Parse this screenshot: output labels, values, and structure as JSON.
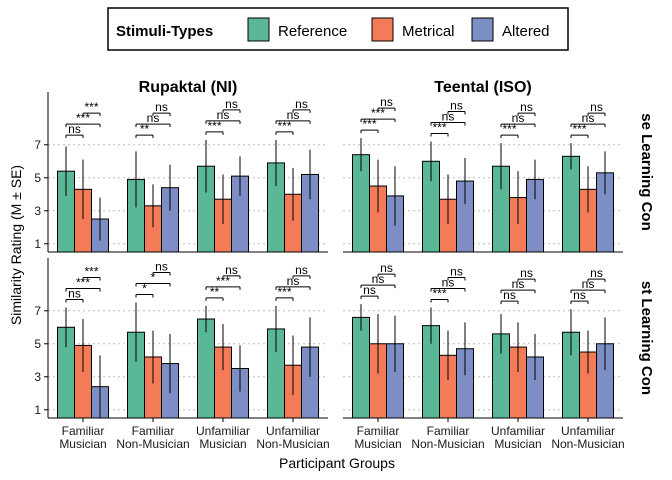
{
  "chart_data": {
    "type": "bar",
    "ylabel": "Similarity Rating (M ± SE)",
    "xlabel": "Participant Groups",
    "yticks": [
      1,
      3,
      5,
      7
    ],
    "ylim": [
      0.5,
      10.2
    ],
    "grid": "horizontal dotted at 1,3,5,7",
    "legend": {
      "title": "Stimuli-Types",
      "position": "top",
      "items": [
        {
          "name": "Reference",
          "color": "#5ab897"
        },
        {
          "name": "Metrical",
          "color": "#f47b57"
        },
        {
          "name": "Altered",
          "color": "#7c8ec4"
        }
      ]
    },
    "categories": [
      "Familiar\nMusician",
      "Familiar\nNon-Musician",
      "Unfamiliar\nMusician",
      "Unfamiliar\nNon-Musician"
    ],
    "columns": [
      "Rupaktal (NI)",
      "Teental (ISO)"
    ],
    "rows": [
      "se Learning Con",
      "st Learning Con"
    ],
    "panels": [
      {
        "row": 0,
        "col": 0,
        "groups": [
          {
            "means": [
              5.4,
              4.3,
              2.5
            ],
            "se": [
              1.5,
              1.8,
              1.3
            ],
            "sig": [
              "ns",
              "***",
              "***"
            ]
          },
          {
            "means": [
              4.9,
              3.3,
              4.4
            ],
            "se": [
              1.7,
              1.3,
              1.4
            ],
            "sig": [
              "**",
              "ns",
              "ns"
            ]
          },
          {
            "means": [
              5.7,
              3.7,
              5.1
            ],
            "se": [
              1.6,
              1.5,
              1.2
            ],
            "sig": [
              "***",
              "ns",
              "ns"
            ]
          },
          {
            "means": [
              5.9,
              4.0,
              5.2
            ],
            "se": [
              1.4,
              1.6,
              1.5
            ],
            "sig": [
              "***",
              "ns",
              "ns"
            ]
          }
        ]
      },
      {
        "row": 0,
        "col": 1,
        "groups": [
          {
            "means": [
              6.4,
              4.5,
              3.9
            ],
            "se": [
              1.0,
              1.6,
              1.8
            ],
            "sig": [
              "***",
              "***",
              "ns"
            ]
          },
          {
            "means": [
              6.0,
              3.7,
              4.8
            ],
            "se": [
              1.2,
              1.5,
              1.4
            ],
            "sig": [
              "***",
              "ns",
              "ns"
            ]
          },
          {
            "means": [
              5.7,
              3.8,
              4.9
            ],
            "se": [
              1.4,
              1.6,
              1.2
            ],
            "sig": [
              "***",
              "ns",
              "ns"
            ]
          },
          {
            "means": [
              6.3,
              4.3,
              5.3
            ],
            "se": [
              0.8,
              1.4,
              1.3
            ],
            "sig": [
              "***",
              "ns",
              "ns"
            ]
          }
        ]
      },
      {
        "row": 1,
        "col": 0,
        "groups": [
          {
            "means": [
              6.0,
              4.9,
              2.4
            ],
            "se": [
              1.2,
              1.6,
              1.9
            ],
            "sig": [
              "ns",
              "***",
              "***"
            ]
          },
          {
            "means": [
              5.7,
              4.2,
              3.8
            ],
            "se": [
              1.8,
              1.6,
              1.8
            ],
            "sig": [
              "*",
              "*",
              "ns"
            ]
          },
          {
            "means": [
              6.5,
              4.8,
              3.5
            ],
            "se": [
              0.8,
              1.4,
              1.4
            ],
            "sig": [
              "**",
              "***",
              "ns"
            ]
          },
          {
            "means": [
              5.9,
              3.7,
              4.8
            ],
            "se": [
              1.4,
              1.8,
              1.8
            ],
            "sig": [
              "***",
              "ns",
              "ns"
            ]
          }
        ]
      },
      {
        "row": 1,
        "col": 1,
        "groups": [
          {
            "means": [
              6.6,
              5.0,
              5.0
            ],
            "se": [
              0.8,
              1.8,
              1.7
            ],
            "sig": [
              "ns",
              "ns",
              "ns"
            ]
          },
          {
            "means": [
              6.1,
              4.3,
              4.7
            ],
            "se": [
              1.1,
              1.5,
              1.6
            ],
            "sig": [
              "***",
              "ns",
              "ns"
            ]
          },
          {
            "means": [
              5.6,
              4.8,
              4.2
            ],
            "se": [
              1.2,
              1.5,
              1.4
            ],
            "sig": [
              "ns",
              "ns",
              "ns"
            ]
          },
          {
            "means": [
              5.7,
              4.5,
              5.0
            ],
            "se": [
              1.4,
              1.3,
              1.6
            ],
            "sig": [
              "ns",
              "ns",
              "ns"
            ]
          }
        ]
      }
    ]
  }
}
